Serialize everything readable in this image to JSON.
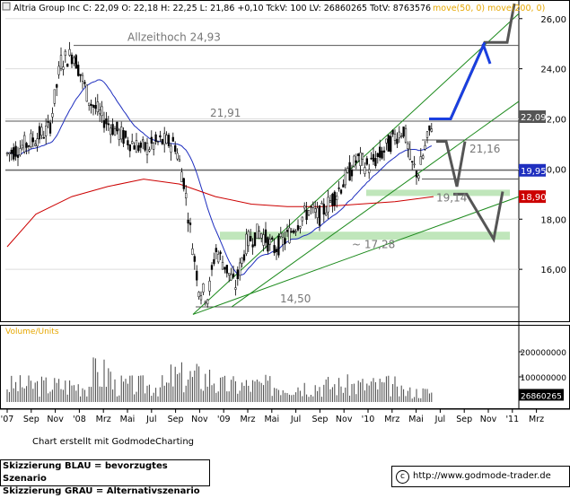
{
  "header": {
    "name": "Altria Group Inc",
    "quote": "C: 22,09  O: 22,18  H: 22,25  L: 21,86  +0,10  TckV: 100  LV: 26860265  TotV: 8763576",
    "ma_labels": "move(50, 0)  move(200, 0)"
  },
  "chart_data": {
    "type": "candlestick",
    "y_axis_ticks": [
      "26,00",
      "24,00",
      "22,00",
      "20,00",
      "18,00",
      "16,00"
    ],
    "y_tick_values": [
      26,
      24,
      22,
      20,
      18,
      16
    ],
    "ylim": [
      14.0,
      26.6
    ],
    "x_axis_labels": [
      "'07",
      "Sep",
      "Nov",
      "'08",
      "Mrz",
      "Mai",
      "Jul",
      "Sep",
      "Nov",
      "'09",
      "Mrz",
      "Mai",
      "Jul",
      "Sep",
      "Nov",
      "'10",
      "Mrz",
      "Mai",
      "Jul",
      "Sep",
      "Nov",
      "'11",
      "Mrz"
    ],
    "price_markers": [
      {
        "label": "22,09",
        "value": 22.09,
        "color": "#555555"
      },
      {
        "label": "19,95",
        "value": 19.95,
        "color": "#1f2fbf"
      },
      {
        "label": "18,90",
        "value": 18.9,
        "color": "#cc0000"
      }
    ],
    "annotations": [
      {
        "text": "Allzeithoch 24,93",
        "value": 24.93
      },
      {
        "text": "21,91",
        "value": 21.91
      },
      {
        "text": "21,16",
        "value": 21.16
      },
      {
        "text": "19,14",
        "value": 19.14
      },
      {
        "text": "~ 17,28",
        "value": 17.28
      },
      {
        "text": "14,50",
        "value": 14.5
      }
    ],
    "ma_colors": {
      "ma50": "#1f2fbf",
      "ma200": "#cc0000"
    },
    "scenario_colors": {
      "preferred": "#1a3fe0",
      "alternative": "#555555"
    },
    "volume": {
      "title": "Volume/Units",
      "ticks": [
        "200000000",
        "100000000"
      ],
      "last_value": "26860265"
    }
  },
  "footer": {
    "credit": "Chart erstellt mit GodmodeCharting",
    "legend_blue": "Skizzierung BLAU = bevorzugtes Szenario",
    "legend_gray": "Skizzierung GRAU = Alternativszenario",
    "url": "http://www.godmode-trader.de",
    "copyright_symbol": "c"
  }
}
